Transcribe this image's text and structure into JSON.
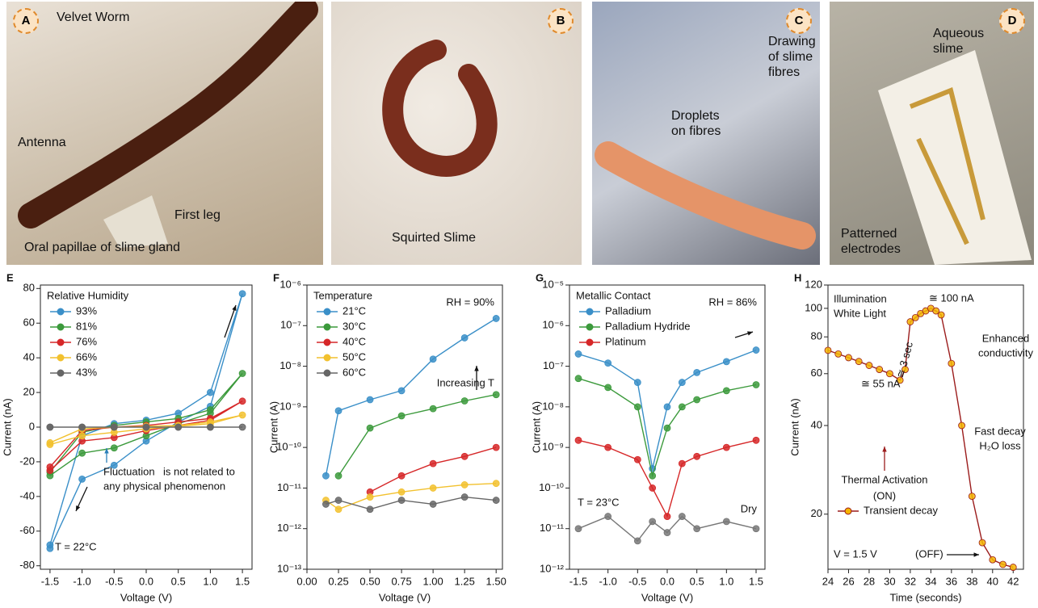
{
  "photos": [
    {
      "panel": "A",
      "labels": [
        "Velvet Worm",
        "Antenna",
        "First leg",
        "Oral papillae of slime gland"
      ]
    },
    {
      "panel": "B",
      "labels": [
        "Squirted Slime"
      ]
    },
    {
      "panel": "C",
      "labels": [
        "Drawing of slime fibres",
        "Droplets on fibres"
      ]
    },
    {
      "panel": "D",
      "labels": [
        "Aqueous slime",
        "Patterned electrodes"
      ]
    }
  ],
  "chart_data": [
    {
      "type": "line",
      "panel": "E",
      "x_label": "Voltage (V)",
      "y_label": "Current (nA)",
      "legend_title": "Relative Humidity",
      "xlim": [
        -1.65,
        1.65
      ],
      "ylim": [
        -82,
        82
      ],
      "xticks": [
        -1.5,
        {
          "value": -1,
          "label": "-1.0"
        },
        -0.5,
        {
          "value": 0,
          "label": "0.0"
        },
        0.5,
        {
          "value": 1,
          "label": "1.0"
        },
        1.5
      ],
      "yticks": [
        -80,
        -60,
        -40,
        -20,
        0,
        20,
        40,
        60,
        80
      ],
      "x": [
        -1.5,
        -1,
        -0.5,
        0,
        0.5,
        1,
        1.5,
        1,
        0.5,
        0,
        -0.5,
        -1,
        -1.5
      ],
      "series": [
        {
          "name": "93%",
          "color": "#3a8fc8",
          "values": [
            -70,
            -30,
            -22,
            -8,
            3,
            12,
            77,
            20,
            8,
            4,
            2,
            -5,
            -68
          ]
        },
        {
          "name": "81%",
          "color": "#3c9a3c",
          "values": [
            -28,
            -15,
            -12,
            -5,
            2,
            8,
            31,
            10,
            5,
            3,
            1,
            -3,
            -26
          ]
        },
        {
          "name": "76%",
          "color": "#d62728",
          "values": [
            -25,
            -8,
            -6,
            -2,
            1,
            4,
            15,
            5,
            3,
            1,
            0,
            -2,
            -23
          ]
        },
        {
          "name": "66%",
          "color": "#f2c12e",
          "values": [
            -10,
            -5,
            -3,
            -1,
            0.5,
            2,
            7,
            3,
            1,
            0.5,
            0,
            -1,
            -9
          ]
        },
        {
          "name": "43%",
          "color": "#666666",
          "values": [
            0,
            0,
            0,
            0,
            0,
            0,
            0,
            0,
            0,
            0,
            0,
            0,
            0
          ]
        }
      ],
      "annotations": [
        "Fluctuation",
        "is not related to",
        "any physical phenomenon",
        "T = 22°C"
      ]
    },
    {
      "type": "line",
      "panel": "F",
      "x_label": "Voltage (V)",
      "y_label": "Current (A)",
      "legend_title": "Temperature",
      "log_y": true,
      "xlim": [
        0,
        1.55
      ],
      "ylim": [
        1e-13,
        1e-06
      ],
      "xticks": [
        {
          "value": 0,
          "label": "0.00"
        },
        {
          "value": 0.25,
          "label": "0.25"
        },
        {
          "value": 0.5,
          "label": "0.50"
        },
        {
          "value": 0.75,
          "label": "0.75"
        },
        {
          "value": 1,
          "label": "1.00"
        },
        {
          "value": 1.25,
          "label": "1.25"
        },
        {
          "value": 1.5,
          "label": "1.50"
        }
      ],
      "yticks": [
        {
          "value": 1e-13,
          "label": "10⁻¹³"
        },
        {
          "value": 1e-12,
          "label": "10⁻¹²"
        },
        {
          "value": 1e-11,
          "label": "10⁻¹¹"
        },
        {
          "value": 1e-10,
          "label": "10⁻¹⁰"
        },
        {
          "value": 1e-09,
          "label": "10⁻⁹"
        },
        {
          "value": 1e-08,
          "label": "10⁻⁸"
        },
        {
          "value": 1e-07,
          "label": "10⁻⁷"
        },
        {
          "value": 1e-06,
          "label": "10⁻⁶"
        }
      ],
      "x": [
        0.15,
        0.25,
        0.5,
        0.75,
        1,
        1.25,
        1.5
      ],
      "series": [
        {
          "name": "21°C",
          "color": "#3a8fc8",
          "values": [
            2e-11,
            8e-10,
            1.5e-09,
            2.5e-09,
            1.5e-08,
            5e-08,
            1.5e-07
          ]
        },
        {
          "name": "30°C",
          "color": "#3c9a3c",
          "values": [
            null,
            2e-11,
            3e-10,
            6e-10,
            9e-10,
            1.4e-09,
            2e-09
          ]
        },
        {
          "name": "40°C",
          "color": "#d62728",
          "values": [
            null,
            null,
            8e-12,
            2e-11,
            4e-11,
            6e-11,
            1e-10
          ]
        },
        {
          "name": "50°C",
          "color": "#f2c12e",
          "values": [
            5e-12,
            3e-12,
            6e-12,
            8e-12,
            1e-11,
            1.2e-11,
            1.3e-11
          ]
        },
        {
          "name": "60°C",
          "color": "#666666",
          "values": [
            4e-12,
            5e-12,
            3e-12,
            5e-12,
            4e-12,
            6e-12,
            5e-12
          ]
        }
      ],
      "annotations": [
        "RH = 90%",
        "Increasing T"
      ]
    },
    {
      "type": "line",
      "panel": "G",
      "x_label": "Voltage (V)",
      "y_label": "Current (A)",
      "legend_title": "Metallic Contact",
      "log_y": true,
      "xlim": [
        -1.65,
        1.65
      ],
      "ylim": [
        1e-12,
        1e-05
      ],
      "xticks": [
        -1.5,
        {
          "value": -1,
          "label": "-1.0"
        },
        -0.5,
        {
          "value": 0,
          "label": "0.0"
        },
        0.5,
        {
          "value": 1,
          "label": "1.0"
        },
        1.5
      ],
      "yticks": [
        {
          "value": 1e-12,
          "label": "10⁻¹²"
        },
        {
          "value": 1e-11,
          "label": "10⁻¹¹"
        },
        {
          "value": 1e-10,
          "label": "10⁻¹⁰"
        },
        {
          "value": 1e-09,
          "label": "10⁻⁹"
        },
        {
          "value": 1e-08,
          "label": "10⁻⁸"
        },
        {
          "value": 1e-07,
          "label": "10⁻⁷"
        },
        {
          "value": 1e-06,
          "label": "10⁻⁶"
        },
        {
          "value": 1e-05,
          "label": "10⁻⁵"
        }
      ],
      "x": [
        -1.5,
        -1,
        -0.5,
        -0.25,
        0,
        0.25,
        0.5,
        1,
        1.5
      ],
      "series": [
        {
          "name": "Palladium",
          "color": "#3a8fc8",
          "values": [
            2e-07,
            1.2e-07,
            4e-08,
            3e-10,
            1e-08,
            4e-08,
            7e-08,
            1.3e-07,
            2.5e-07
          ]
        },
        {
          "name": "Palladium Hydride",
          "color": "#3c9a3c",
          "values": [
            5e-08,
            3e-08,
            1e-08,
            2e-10,
            3e-09,
            1e-08,
            1.5e-08,
            2.5e-08,
            3.5e-08
          ]
        },
        {
          "name": "Platinum",
          "color": "#d62728",
          "values": [
            1.5e-09,
            1e-09,
            5e-10,
            1e-10,
            2e-11,
            4e-10,
            6e-10,
            1e-09,
            1.5e-09
          ]
        },
        {
          "color": "#777777",
          "values": [
            1e-11,
            2e-11,
            5e-12,
            1.5e-11,
            8e-12,
            2e-11,
            1e-11,
            1.5e-11,
            1e-11
          ]
        }
      ],
      "annotations": [
        "RH = 86%",
        "T = 23°C",
        "Dry"
      ]
    },
    {
      "type": "line",
      "panel": "H",
      "x_label": "Time (seconds)",
      "y_label": "Current (nA)",
      "log_y": true,
      "xlim": [
        24,
        43
      ],
      "ylim": [
        13,
        120
      ],
      "xticks": [
        24,
        26,
        28,
        30,
        32,
        34,
        36,
        38,
        40,
        42
      ],
      "yticks": [
        20,
        40,
        60,
        80,
        100,
        120
      ],
      "x": [
        24,
        25,
        26,
        27,
        28,
        29,
        30,
        31,
        31.5,
        32,
        32.5,
        33,
        33.5,
        34,
        34.5,
        35,
        36,
        37,
        38,
        39,
        40,
        41,
        42
      ],
      "series": [
        {
          "name": "Transient decay",
          "color": "#9b1c1c",
          "marker_color": "#f5b400",
          "values": [
            72,
            70,
            68,
            66,
            64,
            62,
            60,
            57,
            62,
            90,
            93,
            96,
            98,
            100,
            98,
            95,
            65,
            40,
            23,
            16,
            14,
            13.5,
            13.2
          ]
        }
      ],
      "annotations": [
        "Illumination",
        "White Light",
        "≅ 100 nA",
        "Enhanced",
        "conductivity",
        "≅ 3 sec",
        "≅ 55 nA",
        "Fast decay",
        "H₂O loss",
        "Thermal Activation",
        "(ON)",
        "V = 1.5 V",
        "(OFF)"
      ]
    }
  ]
}
